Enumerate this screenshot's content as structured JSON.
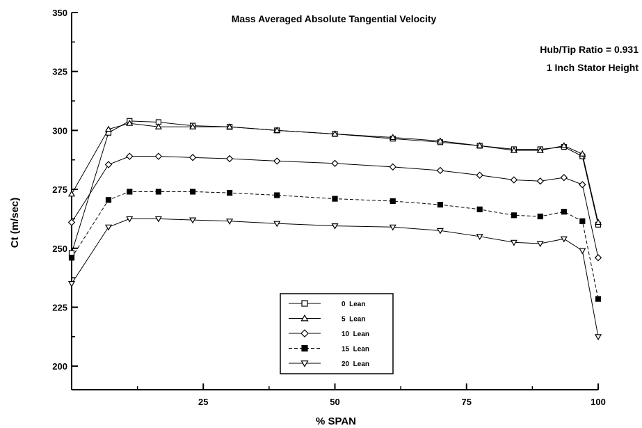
{
  "chart_data": {
    "type": "line",
    "title": "Mass Averaged Absolute Tangential Velocity",
    "annotations": [
      "Hub/Tip Ratio = 0.931",
      "1 Inch Stator Height"
    ],
    "xlabel": "% SPAN",
    "ylabel": "Ct (m/sec)",
    "xlim": [
      0,
      100
    ],
    "ylim": [
      190,
      350
    ],
    "xticks": [
      25,
      50,
      75,
      100
    ],
    "yticks": [
      200,
      225,
      250,
      275,
      300,
      325,
      350
    ],
    "grid": false,
    "legend_position": "bottom-center",
    "series": [
      {
        "name": "0  Lean",
        "marker": "square-open",
        "x": [
          0,
          7,
          11,
          16.5,
          23,
          30,
          39,
          50,
          61,
          70,
          77.5,
          84,
          89,
          93.5,
          97,
          100
        ],
        "y": [
          248,
          299,
          304,
          303.5,
          302,
          301.5,
          300,
          298.5,
          296.5,
          295,
          293.5,
          292,
          292,
          293,
          289,
          260
        ]
      },
      {
        "name": "5  Lean",
        "marker": "triangle-up-open",
        "x": [
          0,
          7,
          11,
          16.5,
          23,
          30,
          39,
          50,
          61,
          70,
          77.5,
          84,
          89,
          93.5,
          97,
          100
        ],
        "y": [
          273,
          300.5,
          303,
          301.5,
          301.5,
          301.5,
          300,
          298.5,
          297,
          295.5,
          293.5,
          291.5,
          291.5,
          293.5,
          290,
          261
        ]
      },
      {
        "name": "10  Lean",
        "marker": "diamond-open",
        "x": [
          0,
          7,
          11,
          16.5,
          23,
          30,
          39,
          50,
          61,
          70,
          77.5,
          84,
          89,
          93.5,
          97,
          100
        ],
        "y": [
          261,
          285.5,
          289,
          289,
          288.5,
          288,
          287,
          286,
          284.5,
          283,
          281,
          279,
          278.5,
          280,
          277,
          246
        ]
      },
      {
        "name": "15  Lean",
        "marker": "square-filled",
        "x": [
          0,
          7,
          11,
          16.5,
          23,
          30,
          39,
          50,
          61,
          70,
          77.5,
          84,
          89,
          93.5,
          97,
          100
        ],
        "y": [
          246,
          270.5,
          274,
          274,
          274,
          273.5,
          272.5,
          271,
          270,
          268.5,
          266.5,
          264,
          263.5,
          265.5,
          261.5,
          228.5
        ]
      },
      {
        "name": "20  Lean",
        "marker": "triangle-down-open",
        "x": [
          0,
          7,
          11,
          16.5,
          23,
          30,
          39,
          50,
          61,
          70,
          77.5,
          84,
          89,
          93.5,
          97,
          100
        ],
        "y": [
          235,
          259,
          262.5,
          262.5,
          262,
          261.5,
          260.5,
          259.5,
          259,
          257.5,
          255,
          252.5,
          252,
          254,
          249,
          212.5
        ]
      }
    ]
  }
}
